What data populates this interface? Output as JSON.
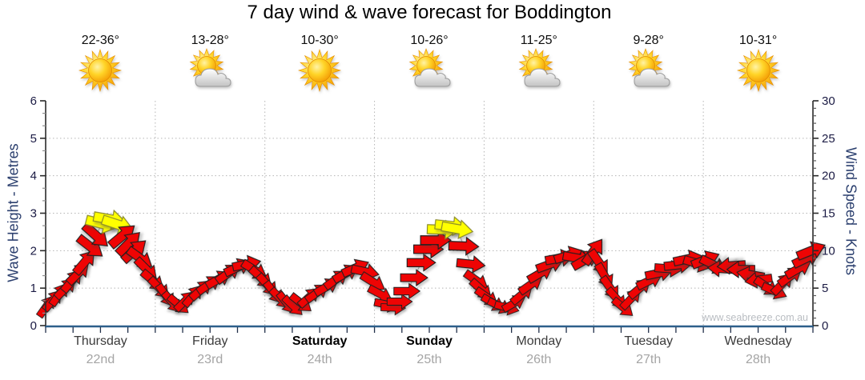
{
  "title": "7 day wind & wave forecast for Boddington",
  "watermark": "www.seabreeze.com.au",
  "left_axis": {
    "label": "Wave Height - Metres",
    "min": 0,
    "max": 6,
    "step": 1,
    "unit": "m"
  },
  "right_axis": {
    "label": "Wind Speed - Knots",
    "min": 0,
    "max": 30,
    "step": 5,
    "unit": "kn"
  },
  "days": [
    {
      "name": "Thursday",
      "date": "22nd",
      "temp": "22-36°",
      "icon": "sunny",
      "weekend": false
    },
    {
      "name": "Friday",
      "date": "23rd",
      "temp": "13-28°",
      "icon": "partly-cloudy",
      "weekend": false
    },
    {
      "name": "Saturday",
      "date": "24th",
      "temp": "10-30°",
      "icon": "sunny",
      "weekend": true
    },
    {
      "name": "Sunday",
      "date": "25th",
      "temp": "10-26°",
      "icon": "partly-cloudy",
      "weekend": true
    },
    {
      "name": "Monday",
      "date": "26th",
      "temp": "11-25°",
      "icon": "partly-cloudy",
      "weekend": false
    },
    {
      "name": "Tuesday",
      "date": "27th",
      "temp": "9-28°",
      "icon": "partly-cloudy",
      "weekend": false
    },
    {
      "name": "Wednesday",
      "date": "28th",
      "temp": "10-31°",
      "icon": "sunny",
      "weekend": false
    }
  ],
  "colors": {
    "red_arrow": "#ee0404",
    "yellow_arrow": "#ffff00",
    "arrow_stroke": "#1f1f1f",
    "yellow_stroke": "#8a8a2a",
    "grid": "#b5b5b5",
    "axis_line": "#2a2a2a",
    "bottom_axis": "#2d5f8a",
    "tick_label": "#1b1b44",
    "connector": "#b0b0b0"
  },
  "chart_data": {
    "type": "scatter",
    "title": "7 day wind & wave forecast for Boddington",
    "ylabel_left": "Wave Height - Metres",
    "ylabel_right": "Wind Speed - Knots",
    "ylim_left": [
      0,
      6
    ],
    "ylim_right": [
      0,
      30
    ],
    "scale_note": "1 metre wave height = 5 knots wind speed on shared axis; arrow vertical position = wind speed (knots), arrow rotation = wind direction, yellow arrows = stronger wind (about 12.5+ knots)",
    "x_categories": [
      "Thursday 22nd",
      "Friday 23rd",
      "Saturday 24th",
      "Sunday 25th",
      "Monday 26th",
      "Tuesday 27th",
      "Wednesday 28th"
    ],
    "grid": true,
    "arrow_fields": [
      "x_px",
      "knots",
      "rotation_deg",
      "color_idx(0=red,1=yellow)"
    ],
    "arrows": [
      [
        58,
        2.6,
        -55,
        0
      ],
      [
        66,
        3.4,
        -50,
        0
      ],
      [
        74,
        4.2,
        -55,
        0
      ],
      [
        82,
        5.0,
        -45,
        0
      ],
      [
        90,
        6.0,
        -50,
        0
      ],
      [
        98,
        7.0,
        -45,
        0
      ],
      [
        106,
        8.5,
        -50,
        0
      ],
      [
        113,
        10.5,
        38,
        0
      ],
      [
        120,
        12.0,
        42,
        0
      ],
      [
        127,
        13.6,
        14,
        1
      ],
      [
        137,
        14.2,
        10,
        1
      ],
      [
        147,
        13.5,
        18,
        1
      ],
      [
        153,
        12.0,
        -40,
        0
      ],
      [
        161,
        11.0,
        -45,
        0
      ],
      [
        168,
        10.0,
        -42,
        0
      ],
      [
        175,
        9.0,
        36,
        0
      ],
      [
        183,
        7.5,
        45,
        0
      ],
      [
        191,
        6.0,
        40,
        0
      ],
      [
        199,
        5.0,
        46,
        0
      ],
      [
        207,
        4.0,
        55,
        0
      ],
      [
        215,
        3.1,
        50,
        0
      ],
      [
        223,
        2.8,
        40,
        0
      ],
      [
        231,
        3.3,
        -45,
        0
      ],
      [
        241,
        4.0,
        -50,
        0
      ],
      [
        251,
        4.8,
        -42,
        0
      ],
      [
        261,
        5.5,
        -35,
        0
      ],
      [
        273,
        6.2,
        -30,
        0
      ],
      [
        285,
        7.0,
        -36,
        0
      ],
      [
        297,
        7.8,
        -25,
        0
      ],
      [
        308,
        8.2,
        -12,
        0
      ],
      [
        318,
        7.4,
        32,
        0
      ],
      [
        326,
        6.4,
        42,
        0
      ],
      [
        334,
        5.4,
        48,
        0
      ],
      [
        342,
        4.4,
        52,
        0
      ],
      [
        350,
        3.6,
        46,
        0
      ],
      [
        358,
        3.0,
        52,
        0
      ],
      [
        366,
        2.6,
        44,
        0
      ],
      [
        376,
        3.0,
        38,
        0
      ],
      [
        386,
        3.8,
        -42,
        0
      ],
      [
        396,
        4.4,
        -36,
        0
      ],
      [
        408,
        5.2,
        -30,
        0
      ],
      [
        420,
        6.2,
        -36,
        0
      ],
      [
        432,
        7.0,
        -30,
        0
      ],
      [
        444,
        7.7,
        -24,
        0
      ],
      [
        456,
        7.2,
        12,
        0
      ],
      [
        466,
        5.8,
        32,
        0
      ],
      [
        475,
        4.2,
        28,
        0
      ],
      [
        483,
        2.8,
        12,
        0
      ],
      [
        491,
        2.4,
        2,
        0
      ],
      [
        499,
        3.2,
        0,
        0
      ],
      [
        508,
        4.6,
        0,
        0
      ],
      [
        517,
        6.4,
        0,
        0
      ],
      [
        526,
        8.4,
        0,
        0
      ],
      [
        535,
        10.2,
        0,
        0
      ],
      [
        544,
        11.4,
        0,
        0
      ],
      [
        553,
        12.8,
        2,
        1
      ],
      [
        563,
        13.3,
        6,
        1
      ],
      [
        571,
        12.9,
        10,
        1
      ],
      [
        579,
        10.6,
        2,
        0
      ],
      [
        588,
        8.2,
        6,
        0
      ],
      [
        595,
        6.0,
        35,
        0
      ],
      [
        601,
        4.8,
        42,
        0
      ],
      [
        608,
        3.8,
        35,
        0
      ],
      [
        616,
        3.0,
        30,
        0
      ],
      [
        624,
        2.6,
        25,
        0
      ],
      [
        633,
        2.4,
        15,
        0
      ],
      [
        642,
        3.0,
        -30,
        0
      ],
      [
        652,
        4.2,
        -40,
        0
      ],
      [
        663,
        5.5,
        -35,
        0
      ],
      [
        675,
        7.0,
        -30,
        0
      ],
      [
        687,
        8.2,
        -20,
        0
      ],
      [
        699,
        9.0,
        -10,
        0
      ],
      [
        710,
        9.4,
        -18,
        0
      ],
      [
        721,
        9.0,
        10,
        0
      ],
      [
        731,
        8.8,
        -30,
        0
      ],
      [
        741,
        9.9,
        -55,
        0
      ],
      [
        748,
        8.4,
        55,
        0
      ],
      [
        755,
        6.6,
        60,
        0
      ],
      [
        762,
        5.0,
        55,
        0
      ],
      [
        770,
        3.6,
        48,
        0
      ],
      [
        778,
        2.4,
        40,
        0
      ],
      [
        788,
        3.6,
        -46,
        0
      ],
      [
        799,
        5.0,
        -40,
        0
      ],
      [
        811,
        6.0,
        -26,
        0
      ],
      [
        823,
        7.0,
        -12,
        0
      ],
      [
        835,
        7.6,
        4,
        0
      ],
      [
        847,
        8.1,
        -6,
        0
      ],
      [
        859,
        8.9,
        -12,
        0
      ],
      [
        871,
        8.3,
        16,
        0
      ],
      [
        881,
        8.8,
        -22,
        0
      ],
      [
        891,
        8.1,
        26,
        0
      ],
      [
        901,
        7.6,
        184,
        0
      ],
      [
        913,
        8.0,
        176,
        0
      ],
      [
        925,
        7.5,
        180,
        0
      ],
      [
        937,
        6.8,
        190,
        0
      ],
      [
        947,
        6.1,
        172,
        0
      ],
      [
        957,
        5.2,
        34,
        0
      ],
      [
        967,
        4.6,
        24,
        0
      ],
      [
        977,
        5.6,
        -46,
        0
      ],
      [
        987,
        6.6,
        -36,
        0
      ],
      [
        997,
        7.6,
        -30,
        0
      ],
      [
        1007,
        9.0,
        -26,
        0
      ],
      [
        1013,
        10.0,
        -22,
        0
      ]
    ]
  }
}
